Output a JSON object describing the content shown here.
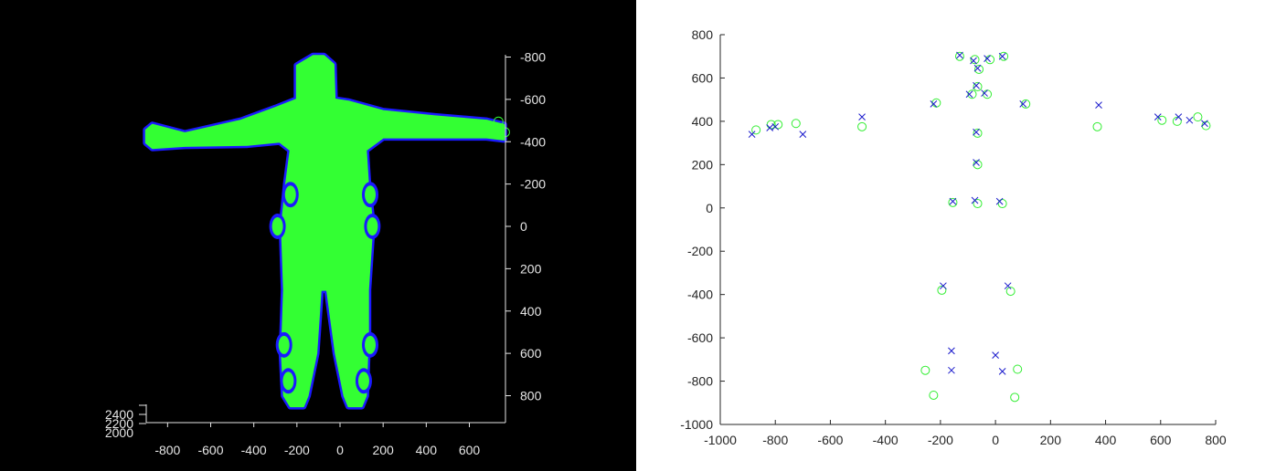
{
  "colors": {
    "silhouette_fill": "#33ff33",
    "silhouette_outline": "#1a1aff",
    "marker_circle": "#33ee33",
    "marker_cross": "#1a1acc",
    "left_background": "#000000",
    "left_axis": "#e6e6e6",
    "right_axis": "#262626"
  },
  "chart_data": [
    {
      "type": "scatter",
      "view": "3d point cloud, front view",
      "subject": "human body point cloud, arms outstretched",
      "x_ticks": [
        "-800",
        "-600",
        "-400",
        "-200",
        "0",
        "200",
        "400",
        "600"
      ],
      "y_ticks": [
        "-800",
        "-600",
        "-400",
        "-200",
        "0",
        "200",
        "400",
        "600",
        "800"
      ],
      "z_ticks": [
        "2400",
        "2200",
        "2000"
      ],
      "xlim": [
        -920,
        760
      ],
      "ylim": [
        -880,
        920
      ],
      "y_direction": "reversed",
      "series": [
        {
          "marker": "circle",
          "color": "#33ff33"
        },
        {
          "marker": "cross",
          "color": "#1a1aff"
        }
      ]
    },
    {
      "type": "scatter",
      "xlim": [
        -1000,
        800
      ],
      "ylim": [
        -1000,
        800
      ],
      "x_ticks": [
        "-1000",
        "-800",
        "-600",
        "-400",
        "-200",
        "0",
        "200",
        "400",
        "600",
        "800"
      ],
      "y_ticks": [
        "800",
        "600",
        "400",
        "200",
        "0",
        "-200",
        "-400",
        "-600",
        "-800",
        "-1000"
      ],
      "grid": false,
      "series": [
        {
          "marker": "circle",
          "color": "#33ee33",
          "points": [
            [
              -130,
              700
            ],
            [
              30,
              700
            ],
            [
              -75,
              685
            ],
            [
              -20,
              685
            ],
            [
              -60,
              640
            ],
            [
              -85,
              525
            ],
            [
              -30,
              525
            ],
            [
              -65,
              560
            ],
            [
              110,
              480
            ],
            [
              -215,
              485
            ],
            [
              -65,
              345
            ],
            [
              -725,
              390
            ],
            [
              -790,
              385
            ],
            [
              -815,
              385
            ],
            [
              -870,
              360
            ],
            [
              -485,
              375
            ],
            [
              370,
              375
            ],
            [
              605,
              405
            ],
            [
              660,
              400
            ],
            [
              735,
              420
            ],
            [
              765,
              380
            ],
            [
              -65,
              200
            ],
            [
              -155,
              25
            ],
            [
              -65,
              20
            ],
            [
              25,
              20
            ],
            [
              -195,
              -380
            ],
            [
              55,
              -385
            ],
            [
              -255,
              -750
            ],
            [
              80,
              -745
            ],
            [
              -225,
              -865
            ],
            [
              70,
              -875
            ]
          ]
        },
        {
          "marker": "cross",
          "color": "#1a1acc",
          "points": [
            [
              -130,
              705
            ],
            [
              25,
              700
            ],
            [
              -80,
              680
            ],
            [
              -30,
              690
            ],
            [
              -65,
              645
            ],
            [
              -95,
              525
            ],
            [
              -40,
              530
            ],
            [
              -70,
              565
            ],
            [
              100,
              480
            ],
            [
              -225,
              480
            ],
            [
              -70,
              350
            ],
            [
              -485,
              420
            ],
            [
              -820,
              370
            ],
            [
              -800,
              375
            ],
            [
              -885,
              340
            ],
            [
              -700,
              340
            ],
            [
              375,
              475
            ],
            [
              590,
              420
            ],
            [
              665,
              420
            ],
            [
              705,
              405
            ],
            [
              760,
              390
            ],
            [
              -70,
              210
            ],
            [
              -155,
              30
            ],
            [
              -75,
              35
            ],
            [
              15,
              30
            ],
            [
              -190,
              -360
            ],
            [
              45,
              -360
            ],
            [
              -160,
              -660
            ],
            [
              -160,
              -750
            ],
            [
              0,
              -680
            ],
            [
              25,
              -755
            ]
          ]
        }
      ]
    }
  ]
}
